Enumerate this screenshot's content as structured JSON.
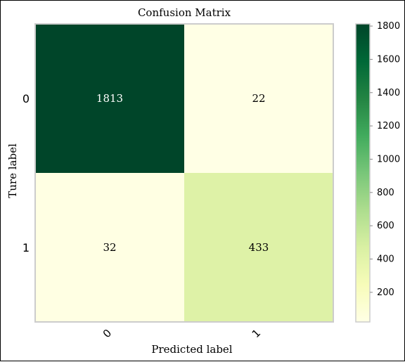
{
  "chart_data": {
    "type": "heatmap",
    "title": "Confusion Matrix",
    "xlabel": "Predicted label",
    "ylabel": "Ture label",
    "x_categories": [
      "0",
      "1"
    ],
    "y_categories": [
      "0",
      "1"
    ],
    "matrix": [
      [
        1813,
        22
      ],
      [
        32,
        433
      ]
    ],
    "colorbar": {
      "colormap": "YlGn",
      "min": 22,
      "max": 1813,
      "ticks": [
        200,
        400,
        600,
        800,
        1000,
        1200,
        1400,
        1600,
        1800
      ]
    },
    "cell_text_color": "#000000",
    "high_value_text_color": "#ffffff"
  }
}
